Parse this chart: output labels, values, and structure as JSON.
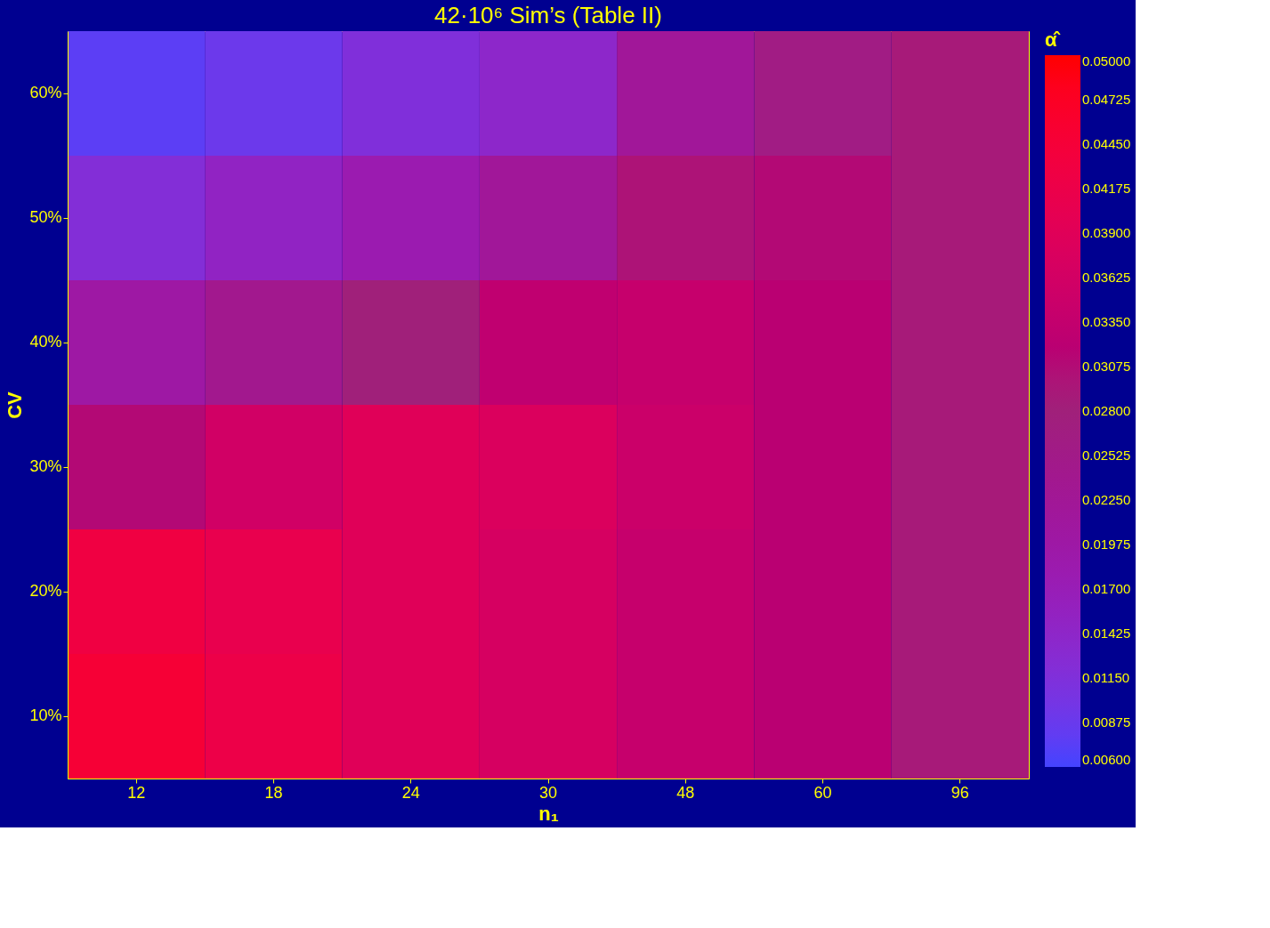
{
  "chart_data": {
    "type": "heatmap",
    "title": "42·10⁶ Sim’s (Table II)",
    "xlabel": "n₁",
    "ylabel": "CV",
    "legend_title": "α̂",
    "categories": [
      "12",
      "18",
      "24",
      "30",
      "48",
      "60",
      "96"
    ],
    "y_categories": [
      "60%",
      "50%",
      "40%",
      "30%",
      "20%",
      "10%"
    ],
    "cells": [
      [
        0.0075,
        0.009,
        0.0115,
        0.014,
        0.022,
        0.026,
        0.029
      ],
      [
        0.012,
        0.015,
        0.018,
        0.022,
        0.03,
        0.031,
        0.029
      ],
      [
        0.02,
        0.024,
        0.028,
        0.033,
        0.034,
        0.032,
        0.029
      ],
      [
        0.031,
        0.036,
        0.039,
        0.038,
        0.035,
        0.032,
        0.029
      ],
      [
        0.043,
        0.041,
        0.039,
        0.037,
        0.034,
        0.032,
        0.029
      ],
      [
        0.045,
        0.042,
        0.039,
        0.037,
        0.034,
        0.032,
        0.029
      ]
    ],
    "clim": [
      0.006,
      0.05
    ],
    "cticks": [
      {
        "value": 0.006,
        "label": "0.00600"
      },
      {
        "value": 0.00875,
        "label": "0.00875"
      },
      {
        "value": 0.0115,
        "label": "0.01150"
      },
      {
        "value": 0.01425,
        "label": "0.01425"
      },
      {
        "value": 0.017,
        "label": "0.01700"
      },
      {
        "value": 0.01975,
        "label": "0.01975"
      },
      {
        "value": 0.0225,
        "label": "0.02250"
      },
      {
        "value": 0.02525,
        "label": "0.02525"
      },
      {
        "value": 0.028,
        "label": "0.02800"
      },
      {
        "value": 0.03075,
        "label": "0.03075"
      },
      {
        "value": 0.0335,
        "label": "0.03350"
      },
      {
        "value": 0.03625,
        "label": "0.03625"
      },
      {
        "value": 0.039,
        "label": "0.03900"
      },
      {
        "value": 0.04175,
        "label": "0.04175"
      },
      {
        "value": 0.0445,
        "label": "0.04450"
      },
      {
        "value": 0.04725,
        "label": "0.04725"
      },
      {
        "value": 0.05,
        "label": "0.05000"
      }
    ]
  }
}
